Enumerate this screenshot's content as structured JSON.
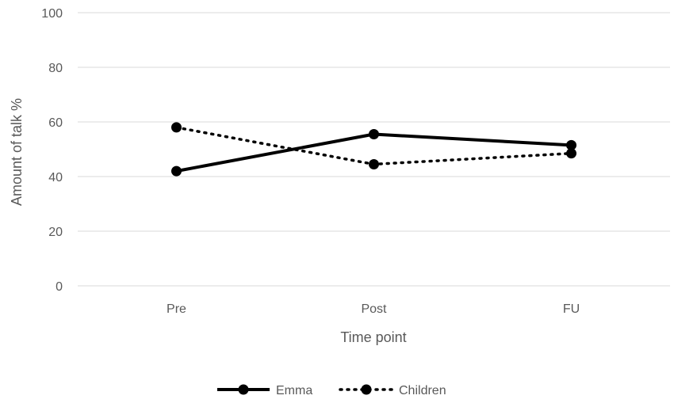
{
  "chart_data": {
    "type": "line",
    "categories": [
      "Pre",
      "Post",
      "FU"
    ],
    "series": [
      {
        "name": "Emma",
        "values": [
          42,
          55.5,
          51.5
        ],
        "color": "#000000",
        "line_style": "solid"
      },
      {
        "name": "Children",
        "values": [
          58,
          44.5,
          48.5
        ],
        "color": "#000000",
        "line_style": "dotted"
      }
    ],
    "xlabel": "Time point",
    "ylabel": "Amount of talk %",
    "ylim": [
      0,
      100
    ],
    "yticks": [
      "0",
      "20",
      "40",
      "60",
      "80",
      "100"
    ],
    "grid": true,
    "legend_position": "bottom"
  }
}
